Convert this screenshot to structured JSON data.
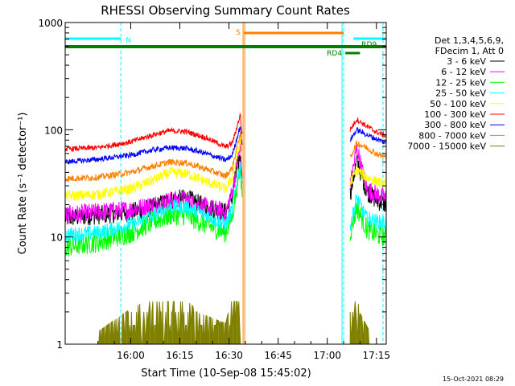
{
  "chart_data": {
    "type": "line",
    "title": "RHESSI Observing Summary Count Rates",
    "xlabel": "Start Time (10-Sep-08 15:45:02)",
    "ylabel": "Count Rate (s⁻¹ detector⁻¹)",
    "yscale": "log",
    "xlim_minutes": [
      -5.0,
      93.0
    ],
    "ylim": [
      1,
      1000
    ],
    "x_ticks": [
      {
        "label": "16:00",
        "v": 15
      },
      {
        "label": "16:15",
        "v": 30
      },
      {
        "label": "16:30",
        "v": 45
      },
      {
        "label": "16:45",
        "v": 60
      },
      {
        "label": "17:00",
        "v": 75
      },
      {
        "label": "17:15",
        "v": 90
      }
    ],
    "y_ticks": [
      {
        "label": "1",
        "v": 1
      },
      {
        "label": "10",
        "v": 10
      },
      {
        "label": "100",
        "v": 100
      },
      {
        "label": "1000",
        "v": 1000
      }
    ],
    "legend_header": [
      "Det 1,3,4,5,6,9,",
      "FDecim 1, Att 0"
    ],
    "legend_position": "right",
    "timestamp": "15-Oct-2021 08:29",
    "flag_bars": [
      {
        "label": "N",
        "color": "#00ffff",
        "row": 1,
        "segments": [
          [
            -5,
            12
          ],
          [
            83,
            93
          ]
        ]
      },
      {
        "label": "S",
        "color": "#ff8000",
        "row": 0,
        "segments": [
          [
            49.5,
            80
          ]
        ]
      },
      {
        "label": "RD9",
        "color": "#008000",
        "row": 2,
        "segments": [
          [
            -5,
            93
          ]
        ]
      },
      {
        "label": "RD4",
        "color": "#008000",
        "row": 3,
        "segments": [
          [
            80.5,
            85
          ]
        ]
      }
    ],
    "vertical_lines": [
      {
        "t": 12.0,
        "color": "#00ffff",
        "dashed": true
      },
      {
        "t": 49.3,
        "color": "#ff8000",
        "dashed": false
      },
      {
        "t": 49.8,
        "color": "#ff8000",
        "dashed": false
      },
      {
        "t": 79.5,
        "color": "#00ffff",
        "dashed": false
      },
      {
        "t": 80.0,
        "color": "#00ffff",
        "dashed": true
      },
      {
        "t": 92.0,
        "color": "#00ffff",
        "dashed": true
      }
    ],
    "series": [
      {
        "name": "3 - 6 keV",
        "color": "#000000",
        "points": [
          [
            -5,
            15
          ],
          [
            5,
            16
          ],
          [
            15,
            17
          ],
          [
            22,
            19
          ],
          [
            27,
            22
          ],
          [
            32,
            23
          ],
          [
            38,
            19
          ],
          [
            44,
            17
          ],
          [
            46,
            24
          ],
          [
            47,
            36
          ],
          [
            48.5,
            60
          ],
          [
            48.8,
            38
          ],
          [
            82,
            25
          ],
          [
            84,
            52
          ],
          [
            87,
            27
          ],
          [
            90,
            22
          ],
          [
            93,
            20
          ]
        ]
      },
      {
        "name": "6 - 12 keV",
        "color": "#ff00ff",
        "points": [
          [
            -5,
            16
          ],
          [
            5,
            17
          ],
          [
            15,
            18
          ],
          [
            22,
            20
          ],
          [
            27,
            22
          ],
          [
            32,
            22
          ],
          [
            38,
            19
          ],
          [
            44,
            17
          ],
          [
            46,
            26
          ],
          [
            47,
            40
          ],
          [
            48.5,
            70
          ],
          [
            48.8,
            42
          ],
          [
            82,
            30
          ],
          [
            84,
            68
          ],
          [
            87,
            28
          ],
          [
            90,
            25
          ],
          [
            93,
            23
          ]
        ]
      },
      {
        "name": "12 - 25 keV",
        "color": "#00ff00",
        "points": [
          [
            -5,
            8
          ],
          [
            5,
            9
          ],
          [
            15,
            11
          ],
          [
            22,
            14
          ],
          [
            27,
            16
          ],
          [
            32,
            16
          ],
          [
            38,
            13
          ],
          [
            44,
            11
          ],
          [
            46,
            16
          ],
          [
            47,
            25
          ],
          [
            48.5,
            45
          ],
          [
            48.8,
            28
          ],
          [
            82,
            11
          ],
          [
            84,
            19
          ],
          [
            87,
            12
          ],
          [
            90,
            10.5
          ],
          [
            93,
            10
          ]
        ]
      },
      {
        "name": "25 - 50 keV",
        "color": "#00ffff",
        "points": [
          [
            -5,
            10.5
          ],
          [
            5,
            11
          ],
          [
            15,
            13
          ],
          [
            22,
            16
          ],
          [
            27,
            19
          ],
          [
            32,
            19
          ],
          [
            38,
            16
          ],
          [
            44,
            13
          ],
          [
            46,
            18
          ],
          [
            47,
            28
          ],
          [
            48.5,
            50
          ],
          [
            48.8,
            32
          ],
          [
            82,
            13
          ],
          [
            84,
            23
          ],
          [
            87,
            15
          ],
          [
            90,
            14
          ],
          [
            93,
            13.5
          ]
        ]
      },
      {
        "name": "50 - 100 keV",
        "color": "#ffff00",
        "points": [
          [
            -5,
            24
          ],
          [
            5,
            25
          ],
          [
            15,
            28
          ],
          [
            22,
            34
          ],
          [
            27,
            40
          ],
          [
            32,
            39
          ],
          [
            38,
            33
          ],
          [
            44,
            28
          ],
          [
            46,
            36
          ],
          [
            47,
            50
          ],
          [
            48.5,
            80
          ],
          [
            48.8,
            55
          ],
          [
            82,
            32
          ],
          [
            84,
            42
          ],
          [
            87,
            36
          ],
          [
            90,
            33
          ],
          [
            93,
            30
          ]
        ]
      },
      {
        "name": "100 - 300 keV",
        "color": "#ff0000",
        "points": [
          [
            -5,
            66
          ],
          [
            5,
            68
          ],
          [
            15,
            77
          ],
          [
            22,
            90
          ],
          [
            27,
            98
          ],
          [
            32,
            96
          ],
          [
            38,
            84
          ],
          [
            44,
            69
          ],
          [
            46,
            75
          ],
          [
            47,
            95
          ],
          [
            48.5,
            140
          ],
          [
            48.8,
            95
          ],
          [
            82,
            100
          ],
          [
            84,
            125
          ],
          [
            87,
            108
          ],
          [
            90,
            95
          ],
          [
            93,
            88
          ]
        ]
      },
      {
        "name": "300 - 800 keV",
        "color": "#0000ff",
        "points": [
          [
            -5,
            50
          ],
          [
            5,
            53
          ],
          [
            15,
            58
          ],
          [
            22,
            65
          ],
          [
            27,
            68
          ],
          [
            32,
            67
          ],
          [
            38,
            60
          ],
          [
            44,
            52
          ],
          [
            46,
            58
          ],
          [
            47,
            75
          ],
          [
            48.5,
            110
          ],
          [
            48.8,
            75
          ],
          [
            82,
            80
          ],
          [
            84,
            100
          ],
          [
            87,
            90
          ],
          [
            90,
            82
          ],
          [
            93,
            75
          ]
        ]
      },
      {
        "name": "800 - 7000 keV",
        "color": "#ff8000",
        "points": [
          [
            -5,
            35
          ],
          [
            5,
            36
          ],
          [
            15,
            40
          ],
          [
            22,
            46
          ],
          [
            27,
            50
          ],
          [
            32,
            49
          ],
          [
            38,
            43
          ],
          [
            44,
            37
          ],
          [
            46,
            44
          ],
          [
            47,
            60
          ],
          [
            48.5,
            95
          ],
          [
            48.8,
            65
          ],
          [
            82,
            55
          ],
          [
            84,
            75
          ],
          [
            87,
            68
          ],
          [
            90,
            60
          ],
          [
            93,
            55
          ]
        ]
      },
      {
        "name": "7000 - 15000 keV",
        "color": "#808000",
        "points": [
          [
            5,
            1
          ],
          [
            13,
            1.5
          ],
          [
            20,
            2
          ],
          [
            23,
            2.5
          ],
          [
            27,
            2.2
          ],
          [
            32,
            2
          ],
          [
            36,
            1.5
          ],
          [
            44,
            1.2
          ],
          [
            47,
            3
          ],
          [
            82,
            1.8
          ],
          [
            84,
            2.2
          ],
          [
            85,
            1.5
          ],
          [
            88,
            1
          ]
        ]
      }
    ]
  }
}
